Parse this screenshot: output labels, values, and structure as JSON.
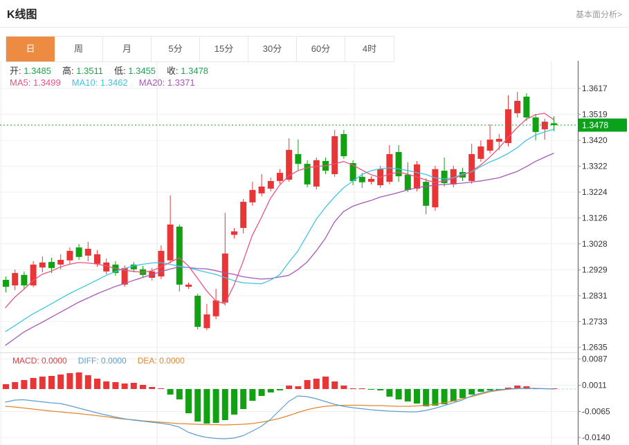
{
  "header": {
    "title": "K线图",
    "analysis_link": "基本面分析>"
  },
  "tabs": {
    "items": [
      "日",
      "周",
      "月",
      "5分",
      "15分",
      "30分",
      "60分",
      "4时"
    ],
    "selected_index": 0
  },
  "ohlc_bar": {
    "segments": [
      {
        "label": "开:",
        "value": "1.3485"
      },
      {
        "label": "高:",
        "value": "1.3511"
      },
      {
        "label": "低:",
        "value": "1.3455"
      },
      {
        "label": "收:",
        "value": "1.3478"
      }
    ]
  },
  "ma_bar": {
    "segments": [
      {
        "label": "MA5:",
        "value": "1.3499",
        "color": "#e8537f"
      },
      {
        "label": "MA10:",
        "value": "1.3462",
        "color": "#3fc3e8"
      },
      {
        "label": "MA20:",
        "value": "1.3371",
        "color": "#a857b8"
      }
    ]
  },
  "macd_bar": {
    "segments": [
      {
        "label": "MACD:",
        "value": "0.0000",
        "color": "#e23b3b"
      },
      {
        "label": "DIFF:",
        "value": "0.0000",
        "color": "#5d9cd3"
      },
      {
        "label": "DEA:",
        "value": "0.0000",
        "color": "#e2862c"
      }
    ]
  },
  "colors": {
    "up": "#e83535",
    "down": "#12a112",
    "ma5": "#e8537f",
    "ma10": "#3fc3e8",
    "ma20": "#a857b8",
    "diff": "#5d9cd3",
    "dea": "#e2862c",
    "price_line": "#0aa21b",
    "price_badge_bg": "#0aa21b",
    "price_badge_text": "#ffffff",
    "tab_active_bg": "#ee8b42",
    "grid": "#efefef",
    "vgrid": "#e9e9e9",
    "axis_line": "#555",
    "tick_text": "#333",
    "ohlc_value": "#21a34e",
    "zero_dash": "#a8d4e8"
  },
  "chart_data": {
    "type": "candlestick",
    "title": "K线图",
    "legend": [
      "MA5",
      "MA10",
      "MA20",
      "MACD",
      "DIFF",
      "DEA"
    ],
    "current_price": 1.3478,
    "price_axis_ticks": [
      1.3617,
      1.3519,
      1.342,
      1.3322,
      1.3224,
      1.3126,
      1.3028,
      1.2929,
      1.2831,
      1.2733,
      1.2635
    ],
    "candles": [
      [
        1.2891,
        1.2904,
        1.2844,
        1.2865
      ],
      [
        1.287,
        1.293,
        1.2852,
        1.2917
      ],
      [
        1.291,
        1.2923,
        1.2855,
        1.287
      ],
      [
        1.287,
        1.2962,
        1.2863,
        1.2949
      ],
      [
        1.2938,
        1.298,
        1.292,
        1.2957
      ],
      [
        1.2959,
        1.2975,
        1.2917,
        1.2936
      ],
      [
        1.2949,
        1.2988,
        1.2931,
        1.2967
      ],
      [
        1.2965,
        1.3014,
        1.2952,
        1.3001
      ],
      [
        1.3014,
        1.3027,
        1.2967,
        1.2978
      ],
      [
        1.2983,
        1.3035,
        1.2962,
        1.3009
      ],
      [
        1.2952,
        1.3004,
        1.2941,
        1.2988
      ],
      [
        1.2923,
        1.2972,
        1.2912,
        1.2957
      ],
      [
        1.2949,
        1.2962,
        1.2907,
        1.2917
      ],
      [
        1.2873,
        1.2946,
        1.2865,
        1.2936
      ],
      [
        1.2949,
        1.2959,
        1.292,
        1.2931
      ],
      [
        1.2931,
        1.2944,
        1.2899,
        1.291
      ],
      [
        1.2899,
        1.2936,
        1.2889,
        1.2923
      ],
      [
        1.2904,
        1.3022,
        1.2894,
        1.3001
      ],
      [
        1.2965,
        1.3211,
        1.2954,
        1.3101
      ],
      [
        1.3093,
        1.3101,
        1.2847,
        1.2873
      ],
      [
        1.2865,
        1.2881,
        1.2857,
        1.2873
      ],
      [
        1.2831,
        1.2839,
        1.2703,
        1.2713
      ],
      [
        1.2708,
        1.28,
        1.27,
        1.276
      ],
      [
        1.2753,
        1.2857,
        1.2742,
        1.2813
      ],
      [
        1.2805,
        1.3145,
        1.2794,
        1.2991
      ],
      [
        1.3062,
        1.3088,
        1.3048,
        1.3075
      ],
      [
        1.3088,
        1.3198,
        1.3067,
        1.3187
      ],
      [
        1.3185,
        1.3263,
        1.3172,
        1.3232
      ],
      [
        1.3219,
        1.3292,
        1.3208,
        1.3245
      ],
      [
        1.3237,
        1.3279,
        1.3227,
        1.3266
      ],
      [
        1.3266,
        1.3311,
        1.3255,
        1.3297
      ],
      [
        1.3271,
        1.3428,
        1.3263,
        1.3384
      ],
      [
        1.3368,
        1.3423,
        1.3305,
        1.3331
      ],
      [
        1.3331,
        1.3345,
        1.3242,
        1.3253
      ],
      [
        1.3245,
        1.3355,
        1.3234,
        1.3345
      ],
      [
        1.3342,
        1.3355,
        1.3292,
        1.3305
      ],
      [
        1.3292,
        1.346,
        1.3282,
        1.3436
      ],
      [
        1.3444,
        1.346,
        1.335,
        1.336
      ],
      [
        1.3334,
        1.3345,
        1.325,
        1.3266
      ],
      [
        1.3282,
        1.3297,
        1.324,
        1.3261
      ],
      [
        1.3263,
        1.3284,
        1.3253,
        1.3274
      ],
      [
        1.325,
        1.3324,
        1.324,
        1.3311
      ],
      [
        1.3263,
        1.3402,
        1.3253,
        1.3368
      ],
      [
        1.3376,
        1.3402,
        1.3263,
        1.3284
      ],
      [
        1.329,
        1.3337,
        1.3224,
        1.3232
      ],
      [
        1.3237,
        1.3342,
        1.3227,
        1.3329
      ],
      [
        1.3263,
        1.3276,
        1.314,
        1.3172
      ],
      [
        1.3166,
        1.3324,
        1.3153,
        1.3311
      ],
      [
        1.3305,
        1.3355,
        1.3245,
        1.3258
      ],
      [
        1.3253,
        1.3324,
        1.3242,
        1.3311
      ],
      [
        1.33,
        1.3316,
        1.3266,
        1.3279
      ],
      [
        1.3266,
        1.3407,
        1.3255,
        1.3368
      ],
      [
        1.335,
        1.342,
        1.3339,
        1.3397
      ],
      [
        1.3381,
        1.3481,
        1.3371,
        1.3423
      ],
      [
        1.3415,
        1.3444,
        1.3384,
        1.3426
      ],
      [
        1.341,
        1.3591,
        1.3397,
        1.3538
      ],
      [
        1.3523,
        1.3604,
        1.3507,
        1.357
      ],
      [
        1.3586,
        1.3599,
        1.3494,
        1.3507
      ],
      [
        1.3507,
        1.352,
        1.342,
        1.3452
      ],
      [
        1.3462,
        1.3502,
        1.3423,
        1.3491
      ],
      [
        1.3485,
        1.3511,
        1.3455,
        1.3478
      ]
    ],
    "ma5": [
      1.2786,
      1.2825,
      1.2855,
      1.2888,
      1.2912,
      1.2924,
      1.294,
      1.295,
      1.2957,
      1.2955,
      1.2951,
      1.2944,
      1.2935,
      1.2928,
      1.2923,
      1.292,
      1.2925,
      1.294,
      1.2957,
      1.2975,
      1.2945,
      1.2898,
      1.285,
      1.2812,
      1.28,
      1.287,
      1.296,
      1.3059,
      1.3127,
      1.32,
      1.325,
      1.3285,
      1.3305,
      1.3316,
      1.3321,
      1.3324,
      1.3331,
      1.334,
      1.3327,
      1.3308,
      1.329,
      1.328,
      1.3292,
      1.33,
      1.3292,
      1.3282,
      1.327,
      1.3261,
      1.3266,
      1.3276,
      1.3287,
      1.3303,
      1.3326,
      1.3356,
      1.339,
      1.343,
      1.3468,
      1.35,
      1.3517,
      1.3523,
      1.3499
    ],
    "ma10": [
      1.2695,
      1.2717,
      1.274,
      1.2762,
      1.2781,
      1.28,
      1.282,
      1.2839,
      1.2856,
      1.2873,
      1.289,
      1.2908,
      1.2922,
      1.2934,
      1.2944,
      1.295,
      1.2955,
      1.2957,
      1.295,
      1.2943,
      1.2938,
      1.2928,
      1.292,
      1.2912,
      1.29,
      1.2888,
      1.288,
      1.2878,
      1.2876,
      1.289,
      1.291,
      1.2957,
      1.3,
      1.306,
      1.312,
      1.3165,
      1.3205,
      1.324,
      1.3265,
      1.329,
      1.3305,
      1.3312,
      1.3316,
      1.3312,
      1.3306,
      1.3298,
      1.3291,
      1.3278,
      1.3274,
      1.3278,
      1.3292,
      1.33,
      1.332,
      1.3338,
      1.3352,
      1.337,
      1.3392,
      1.342,
      1.344,
      1.3452,
      1.3462
    ],
    "ma20": [
      1.2643,
      1.2668,
      1.2693,
      1.2712,
      1.273,
      1.2749,
      1.2768,
      1.2787,
      1.2806,
      1.2822,
      1.2838,
      1.2852,
      1.2866,
      1.2877,
      1.2889,
      1.29,
      1.2911,
      1.2922,
      1.2932,
      1.294,
      1.2938,
      1.2934,
      1.2933,
      1.2926,
      1.2918,
      1.2912,
      1.2903,
      1.2898,
      1.2894,
      1.2896,
      1.2902,
      1.2908,
      1.293,
      1.2958,
      1.3,
      1.3048,
      1.311,
      1.315,
      1.317,
      1.3182,
      1.3192,
      1.3205,
      1.3213,
      1.3222,
      1.3232,
      1.324,
      1.3246,
      1.325,
      1.3253,
      1.3255,
      1.3258,
      1.3262,
      1.3266,
      1.3272,
      1.3278,
      1.329,
      1.3302,
      1.332,
      1.334,
      1.3356,
      1.3371
    ],
    "macd_panel": {
      "axis_ticks": [
        0.0087,
        0.0011,
        -0.0065,
        -0.014
      ],
      "histogram": [
        0.0014,
        0.002,
        0.0026,
        0.0032,
        0.0036,
        0.0038,
        0.0042,
        0.0046,
        0.0048,
        0.004,
        0.003,
        0.0022,
        0.002,
        0.0016,
        0.0018,
        0.0012,
        0.0006,
        0.0002,
        -0.0016,
        -0.003,
        -0.007,
        -0.0094,
        -0.01,
        -0.0098,
        -0.009,
        -0.0074,
        -0.0058,
        -0.0034,
        -0.002,
        -0.001,
        -0.0004,
        0.001,
        0.0008,
        0.0026,
        0.003,
        0.0036,
        0.0022,
        0.001,
        0.0002,
        0.0,
        -0.0002,
        -0.0004,
        -0.0022,
        -0.003,
        -0.0036,
        -0.0042,
        -0.005,
        -0.0048,
        -0.0044,
        -0.0036,
        -0.0026,
        -0.0016,
        -0.0008,
        -0.0004,
        -0.0002,
        0.0004,
        0.001,
        0.0008,
        0.0002,
        0.0,
        0.0
      ],
      "diff": [
        -0.0038,
        -0.0032,
        -0.0031,
        -0.0034,
        -0.0037,
        -0.004,
        -0.0042,
        -0.0048,
        -0.0055,
        -0.0062,
        -0.0069,
        -0.0075,
        -0.0081,
        -0.0086,
        -0.009,
        -0.0093,
        -0.0096,
        -0.0099,
        -0.0103,
        -0.011,
        -0.0125,
        -0.0134,
        -0.014,
        -0.0143,
        -0.0144,
        -0.0142,
        -0.0135,
        -0.0122,
        -0.0108,
        -0.0088,
        -0.0062,
        -0.0036,
        -0.002,
        -0.0022,
        -0.0028,
        -0.0036,
        -0.0044,
        -0.005,
        -0.0054,
        -0.0057,
        -0.006,
        -0.0062,
        -0.0064,
        -0.0065,
        -0.0066,
        -0.0066,
        -0.0062,
        -0.0056,
        -0.0048,
        -0.004,
        -0.0032,
        -0.002,
        -0.0012,
        -0.0006,
        -0.0002,
        0.0,
        0.0002,
        0.0002,
        0.0002,
        0.0001,
        0.0
      ],
      "dea": [
        -0.005,
        -0.0052,
        -0.0055,
        -0.0058,
        -0.0061,
        -0.0064,
        -0.0066,
        -0.0069,
        -0.0071,
        -0.0074,
        -0.0077,
        -0.008,
        -0.0084,
        -0.0087,
        -0.0089,
        -0.0092,
        -0.0094,
        -0.0096,
        -0.0098,
        -0.01,
        -0.0101,
        -0.0102,
        -0.0103,
        -0.0103,
        -0.0104,
        -0.0103,
        -0.0102,
        -0.01,
        -0.0096,
        -0.0091,
        -0.0085,
        -0.0077,
        -0.0068,
        -0.006,
        -0.0054,
        -0.005,
        -0.0048,
        -0.0047,
        -0.0047,
        -0.0047,
        -0.0048,
        -0.0048,
        -0.0049,
        -0.005,
        -0.005,
        -0.0049,
        -0.0047,
        -0.0044,
        -0.004,
        -0.0035,
        -0.0028,
        -0.0022,
        -0.0015,
        -0.0008,
        -0.0004,
        -0.0001,
        0.0001,
        0.0002,
        0.0002,
        0.0001,
        0.0
      ]
    }
  }
}
